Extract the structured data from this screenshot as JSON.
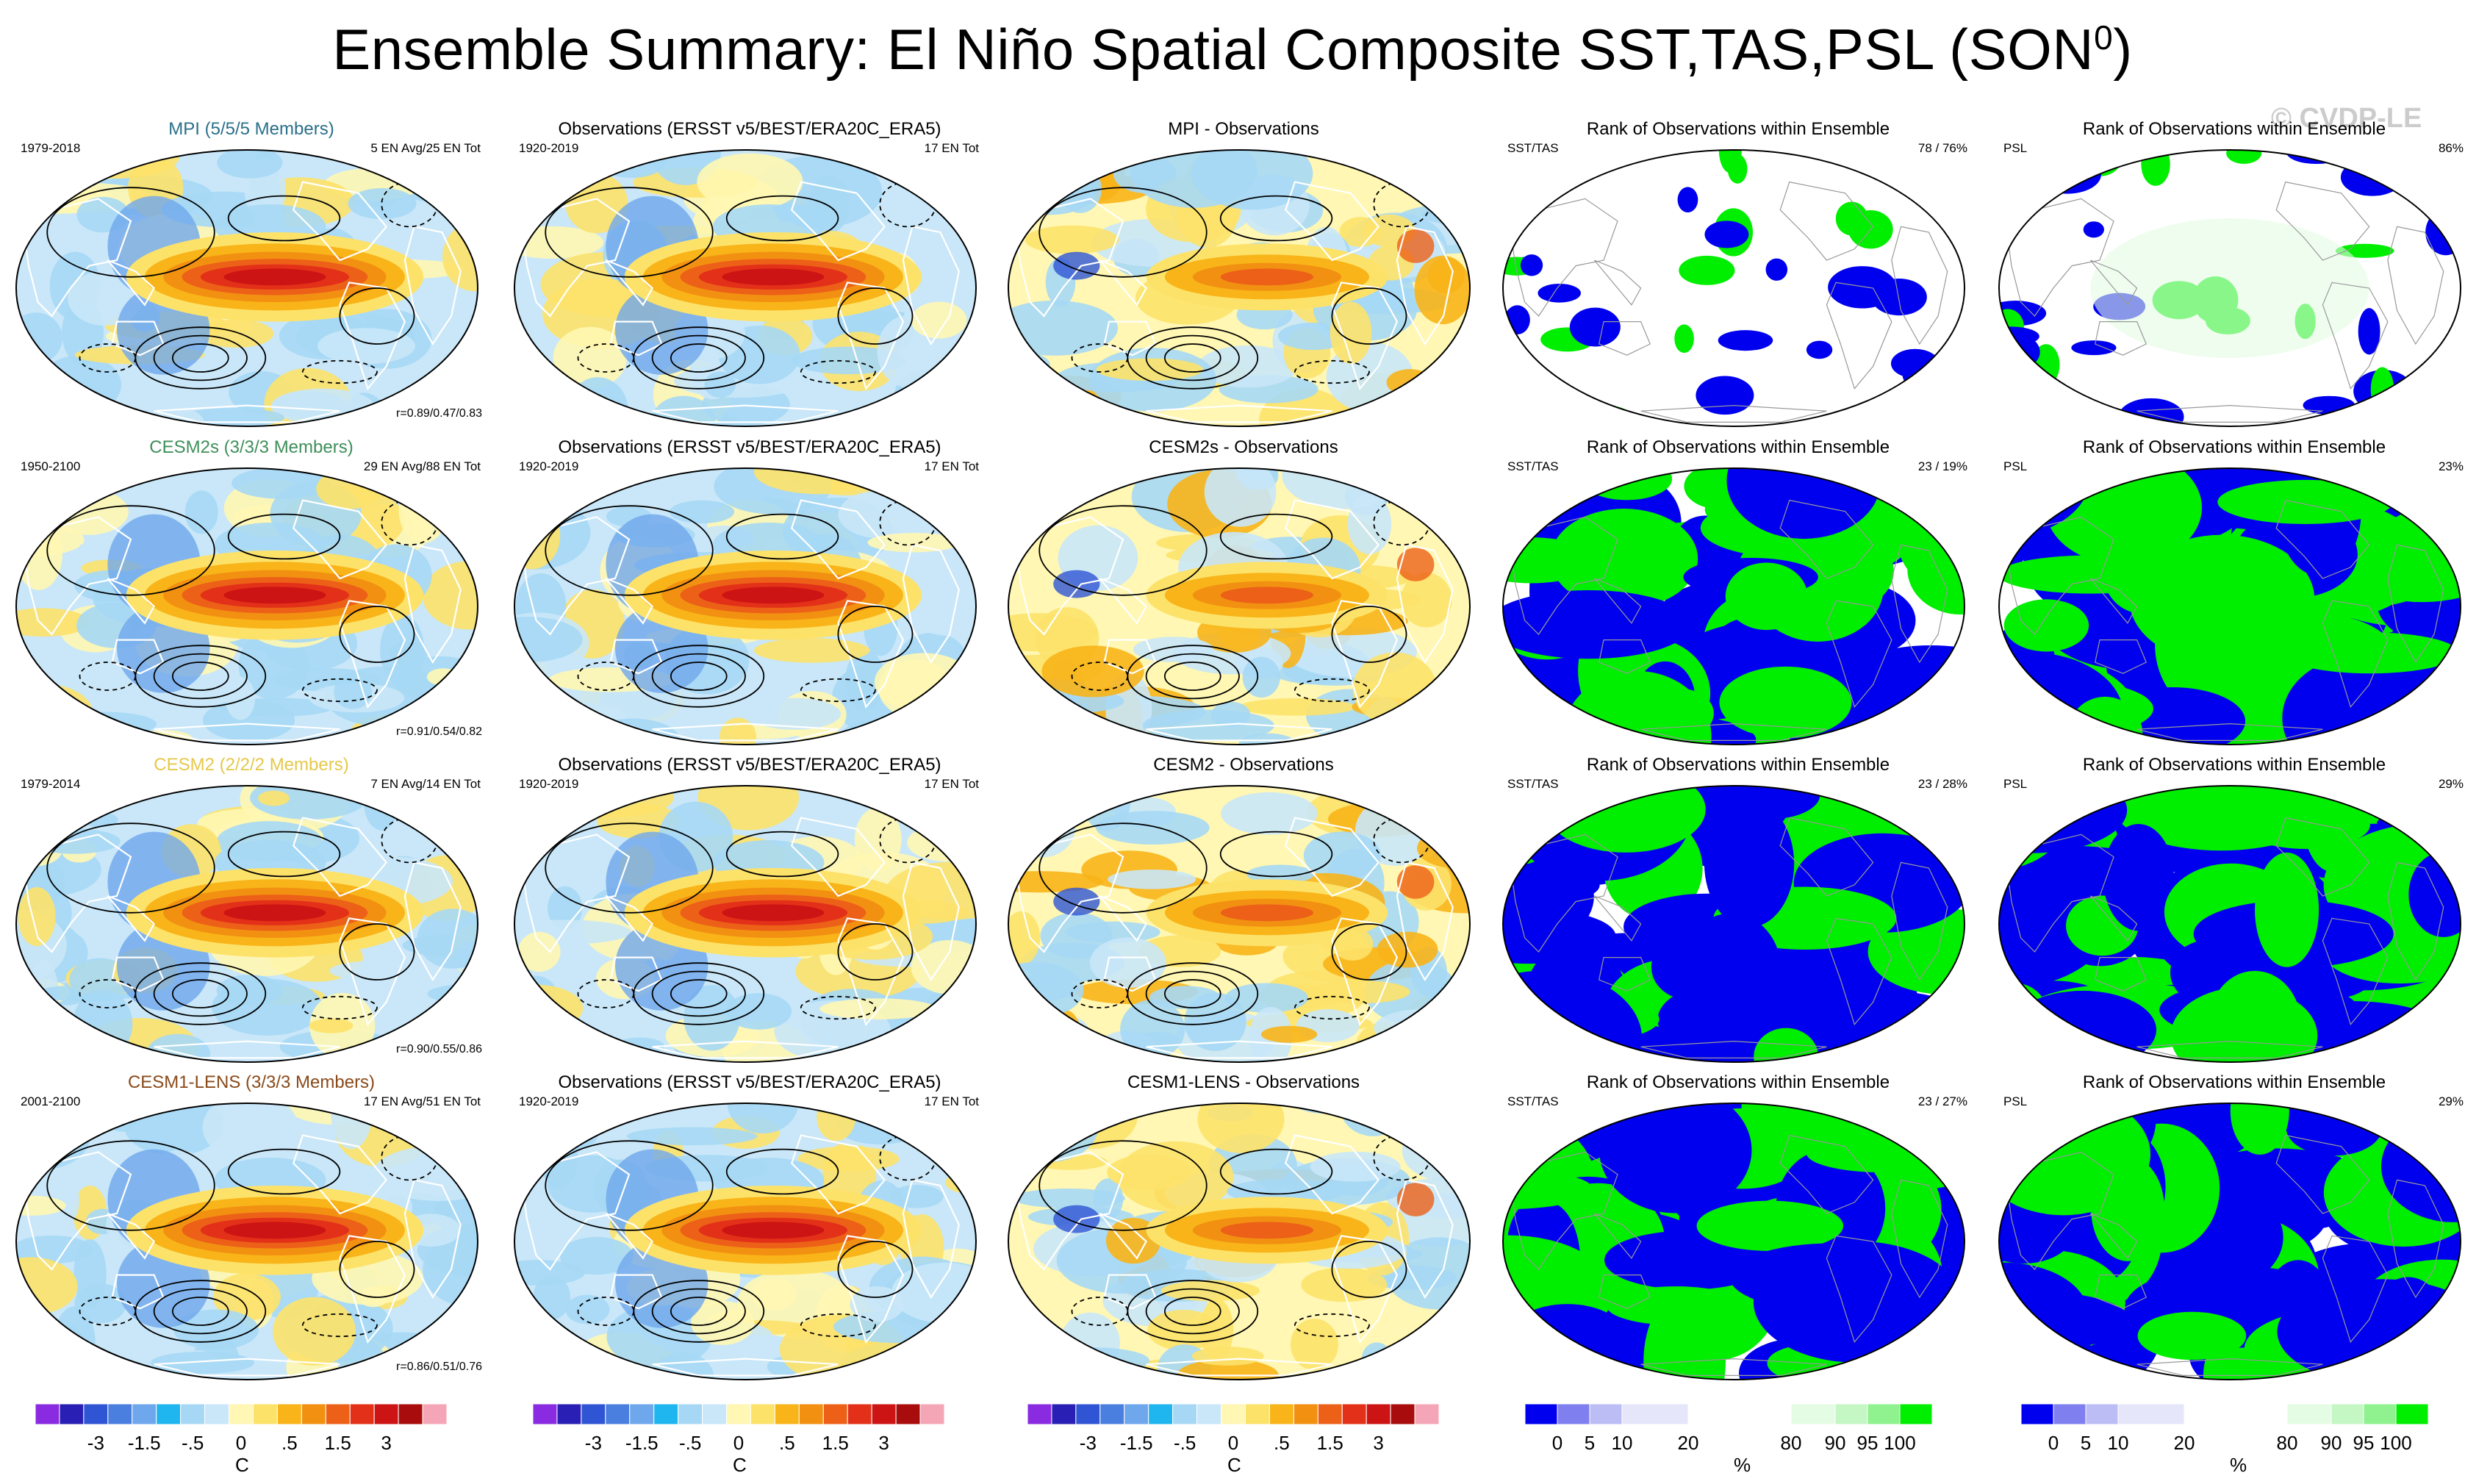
{
  "figure": {
    "title": "Ensemble Summary: El Niño Spatial Composite SST,TAS,PSL (SON",
    "title_superscript": "0",
    "title_close": ")",
    "watermark": "© CVDP-LE"
  },
  "chart_data": {
    "type": "heatmap",
    "projection": "Robinson global maps",
    "rows": [
      {
        "model": "MPI",
        "model_title": "MPI (5/5/5 Members)",
        "model_color": "#2a6f8a",
        "model_years": "1979-2018",
        "model_counts": "5 EN Avg/25 EN Tot",
        "pattern_correlations": "r=0.89/0.47/0.83",
        "obs_title": "Observations (ERSST v5/BEST/ERA20C_ERA5)",
        "obs_years": "1920-2019",
        "obs_counts": "17 EN Tot",
        "diff_title": "MPI - Observations",
        "rank_sst_title": "Rank of Observations within Ensemble",
        "rank_sst_label": "SST/TAS",
        "rank_sst_pct": "78 /  76%",
        "rank_psl_title": "Rank of Observations within Ensemble",
        "rank_psl_label": "PSL",
        "rank_psl_pct": "86%"
      },
      {
        "model": "CESM2s",
        "model_title": "CESM2s (3/3/3 Members)",
        "model_color": "#3f8f5a",
        "model_years": "1950-2100",
        "model_counts": "29 EN Avg/88 EN Tot",
        "pattern_correlations": "r=0.91/0.54/0.82",
        "obs_title": "Observations (ERSST v5/BEST/ERA20C_ERA5)",
        "obs_years": "1920-2019",
        "obs_counts": "17 EN Tot",
        "diff_title": "CESM2s - Observations",
        "rank_sst_title": "Rank of Observations within Ensemble",
        "rank_sst_label": "SST/TAS",
        "rank_sst_pct": "23 /  19%",
        "rank_psl_title": "Rank of Observations within Ensemble",
        "rank_psl_label": "PSL",
        "rank_psl_pct": "23%"
      },
      {
        "model": "CESM2",
        "model_title": "CESM2 (2/2/2 Members)",
        "model_color": "#e6c84a",
        "model_years": "1979-2014",
        "model_counts": "7 EN Avg/14 EN Tot",
        "pattern_correlations": "r=0.90/0.55/0.86",
        "obs_title": "Observations (ERSST v5/BEST/ERA20C_ERA5)",
        "obs_years": "1920-2019",
        "obs_counts": "17 EN Tot",
        "diff_title": "CESM2 - Observations",
        "rank_sst_title": "Rank of Observations within Ensemble",
        "rank_sst_label": "SST/TAS",
        "rank_sst_pct": "23 /  28%",
        "rank_psl_title": "Rank of Observations within Ensemble",
        "rank_psl_label": "PSL",
        "rank_psl_pct": "29%"
      },
      {
        "model": "CESM1-LENS",
        "model_title": "CESM1-LENS (3/3/3 Members)",
        "model_color": "#8a4a1a",
        "model_years": "2001-2100",
        "model_counts": "17 EN Avg/51 EN Tot",
        "pattern_correlations": "r=0.86/0.51/0.76",
        "obs_title": "Observations (ERSST v5/BEST/ERA20C_ERA5)",
        "obs_years": "1920-2019",
        "obs_counts": "17 EN Tot",
        "diff_title": "CESM1-LENS - Observations",
        "rank_sst_title": "Rank of Observations within Ensemble",
        "rank_sst_label": "SST/TAS",
        "rank_sst_pct": "23 /  27%",
        "rank_psl_title": "Rank of Observations within Ensemble",
        "rank_psl_label": "PSL",
        "rank_psl_pct": "29%"
      }
    ],
    "anomaly_colorbar": {
      "colors": [
        "#8a2be2",
        "#2a1fb5",
        "#2f55d4",
        "#4a7fe0",
        "#6fa7ec",
        "#1fb5ef",
        "#a6d8f5",
        "#c9e7f8",
        "#fff7b3",
        "#fde26a",
        "#f8b418",
        "#f29012",
        "#ec6018",
        "#e33018",
        "#cc1414",
        "#a80c0c",
        "#f4a6b6"
      ],
      "tick_labels": [
        "-3",
        "-1.5",
        "-.5",
        "0",
        ".5",
        "1.5",
        "3"
      ],
      "unit": "C"
    },
    "rank_colorbar": {
      "colors": [
        "#0000ee",
        "#7f7ff0",
        "#bdbdf6",
        "#e6e6fb",
        "#ffffff",
        "#ffffff",
        "#e4fbe4",
        "#c4f7c4",
        "#8ff28f",
        "#00ee00"
      ],
      "tick_labels": [
        "0",
        "5",
        "10",
        "20",
        "80",
        "90",
        "95",
        "100"
      ],
      "unit": "%"
    }
  }
}
